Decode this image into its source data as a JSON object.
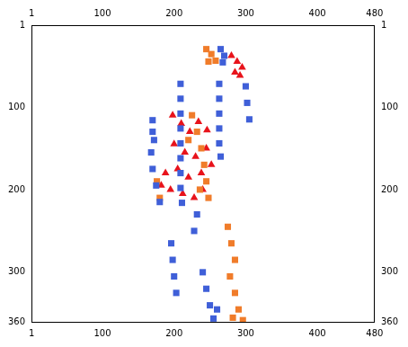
{
  "chart_data": {
    "type": "scatter",
    "xlim": [
      1,
      480
    ],
    "xticks": [
      1,
      100,
      200,
      300,
      400,
      480
    ],
    "ylim": [
      1,
      360
    ],
    "yticks": [
      1,
      100,
      200,
      300,
      360
    ],
    "grid": false,
    "series": [
      {
        "color": "#3f5fd8",
        "marker": "rect",
        "points": [
          [
            265,
            30
          ],
          [
            270,
            38
          ],
          [
            268,
            46
          ],
          [
            263,
            72
          ],
          [
            263,
            90
          ],
          [
            263,
            108
          ],
          [
            263,
            126
          ],
          [
            263,
            144
          ],
          [
            265,
            160
          ],
          [
            209,
            72
          ],
          [
            209,
            90
          ],
          [
            209,
            108
          ],
          [
            209,
            126
          ],
          [
            209,
            144
          ],
          [
            209,
            162
          ],
          [
            209,
            180
          ],
          [
            209,
            198
          ],
          [
            211,
            216
          ],
          [
            170,
            116
          ],
          [
            170,
            130
          ],
          [
            172,
            140
          ],
          [
            168,
            155
          ],
          [
            170,
            175
          ],
          [
            175,
            195
          ],
          [
            180,
            215
          ],
          [
            196,
            265
          ],
          [
            198,
            285
          ],
          [
            200,
            305
          ],
          [
            203,
            325
          ],
          [
            240,
            300
          ],
          [
            245,
            320
          ],
          [
            250,
            340
          ],
          [
            255,
            356
          ],
          [
            260,
            345
          ],
          [
            300,
            75
          ],
          [
            302,
            95
          ],
          [
            305,
            115
          ],
          [
            232,
            230
          ],
          [
            228,
            250
          ]
        ]
      },
      {
        "color": "#f07c2a",
        "marker": "rect",
        "points": [
          [
            245,
            30
          ],
          [
            252,
            36
          ],
          [
            258,
            44
          ],
          [
            248,
            45
          ],
          [
            232,
            130
          ],
          [
            238,
            150
          ],
          [
            242,
            170
          ],
          [
            245,
            190
          ],
          [
            248,
            210
          ],
          [
            236,
            200
          ],
          [
            275,
            245
          ],
          [
            280,
            265
          ],
          [
            285,
            285
          ],
          [
            278,
            305
          ],
          [
            285,
            325
          ],
          [
            290,
            345
          ],
          [
            296,
            358
          ],
          [
            282,
            355
          ],
          [
            176,
            190
          ],
          [
            180,
            210
          ],
          [
            220,
            140
          ],
          [
            225,
            110
          ]
        ]
      },
      {
        "color": "#e8131b",
        "marker": "triangle",
        "points": [
          [
            280,
            38
          ],
          [
            288,
            45
          ],
          [
            295,
            52
          ],
          [
            285,
            58
          ],
          [
            292,
            62
          ],
          [
            198,
            110
          ],
          [
            210,
            120
          ],
          [
            222,
            130
          ],
          [
            234,
            118
          ],
          [
            246,
            128
          ],
          [
            200,
            145
          ],
          [
            215,
            155
          ],
          [
            230,
            160
          ],
          [
            245,
            150
          ],
          [
            205,
            175
          ],
          [
            220,
            185
          ],
          [
            238,
            180
          ],
          [
            252,
            170
          ],
          [
            195,
            200
          ],
          [
            212,
            205
          ],
          [
            228,
            210
          ],
          [
            182,
            195
          ],
          [
            188,
            180
          ],
          [
            240,
            200
          ]
        ]
      }
    ]
  }
}
